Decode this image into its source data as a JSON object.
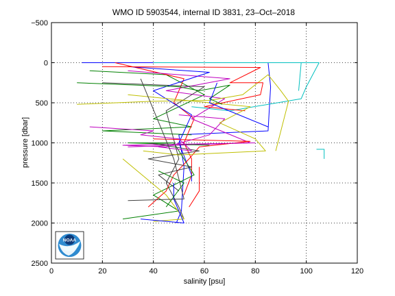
{
  "chart_data": {
    "type": "line",
    "title": "WMO ID 5903544, internal ID 3831, 23–Oct–2018",
    "xlabel": "salinity [psu]",
    "ylabel": "pressure [dbar]",
    "xlim": [
      0,
      120
    ],
    "ylim": [
      -500,
      2500
    ],
    "y_reversed": true,
    "x_ticks": [
      "0",
      "20",
      "40",
      "60",
      "80",
      "100",
      "120"
    ],
    "y_ticks": [
      "−500",
      "0",
      "500",
      "1000",
      "1500",
      "2000",
      "2500"
    ],
    "grid": "dotted",
    "legend": "none",
    "logo": "noaa-logo",
    "series": [
      {
        "color": "#0000ff",
        "points": [
          [
            12,
            0
          ],
          [
            85,
            0
          ],
          [
            86,
            300
          ],
          [
            85,
            850
          ],
          [
            50,
            900
          ],
          [
            52,
            1300
          ],
          [
            51,
            1850
          ],
          [
            49,
            2000
          ]
        ]
      },
      {
        "color": "#008000",
        "points": [
          [
            15,
            100
          ],
          [
            45,
            150
          ],
          [
            60,
            400
          ],
          [
            40,
            700
          ],
          [
            55,
            800
          ],
          [
            20,
            850
          ],
          [
            55,
            900
          ]
        ]
      },
      {
        "color": "#ff0000",
        "points": [
          [
            25,
            0
          ],
          [
            52,
            200
          ],
          [
            48,
            500
          ],
          [
            56,
            700
          ],
          [
            52,
            1000
          ],
          [
            55,
            1200
          ],
          [
            55,
            1400
          ],
          [
            52,
            1650
          ]
        ]
      },
      {
        "color": "#00bfbf",
        "points": [
          [
            40,
            0
          ],
          [
            105,
            0
          ],
          [
            100,
            300
          ],
          [
            98,
            450
          ],
          [
            70,
            600
          ],
          [
            55,
            550
          ]
        ]
      },
      {
        "color": "#bf00bf",
        "points": [
          [
            30,
            100
          ],
          [
            70,
            200
          ],
          [
            45,
            350
          ],
          [
            68,
            450
          ],
          [
            55,
            700
          ],
          [
            78,
            1000
          ],
          [
            30,
            1050
          ]
        ]
      },
      {
        "color": "#bfbf00",
        "points": [
          [
            10,
            520
          ],
          [
            40,
            480
          ],
          [
            62,
            470
          ],
          [
            75,
            400
          ],
          [
            85,
            150
          ],
          [
            90,
            350
          ],
          [
            93,
            480
          ],
          [
            88,
            1100
          ]
        ]
      },
      {
        "color": "#404040",
        "points": [
          [
            20,
            250
          ],
          [
            60,
            300
          ],
          [
            45,
            600
          ],
          [
            50,
            1200
          ],
          [
            45,
            1500
          ],
          [
            50,
            1800
          ],
          [
            52,
            1950
          ]
        ]
      },
      {
        "color": "#0000ff",
        "points": [
          [
            30,
            50
          ],
          [
            62,
            120
          ],
          [
            40,
            350
          ],
          [
            55,
            650
          ],
          [
            50,
            1000
          ],
          [
            55,
            1400
          ],
          [
            55,
            1480
          ]
        ]
      },
      {
        "color": "#008000",
        "points": [
          [
            28,
            1950
          ],
          [
            50,
            1850
          ],
          [
            40,
            1650
          ],
          [
            56,
            1400
          ],
          [
            48,
            1000
          ],
          [
            30,
            1000
          ],
          [
            62,
            1030
          ]
        ]
      },
      {
        "color": "#ff0000",
        "points": [
          [
            40,
            950
          ],
          [
            78,
            980
          ],
          [
            58,
            1050
          ],
          [
            54,
            1200
          ],
          [
            48,
            1400
          ],
          [
            45,
            1600
          ],
          [
            38,
            1800
          ]
        ]
      },
      {
        "color": "#bf00bf",
        "points": [
          [
            50,
            650
          ],
          [
            68,
            700
          ],
          [
            62,
            900
          ],
          [
            45,
            1050
          ],
          [
            28,
            1030
          ],
          [
            80,
            1000
          ]
        ]
      },
      {
        "color": "#00bfbf",
        "points": [
          [
            104,
            1080
          ],
          [
            107,
            1080
          ],
          [
            107,
            1200
          ]
        ]
      },
      {
        "color": "#bfbf00",
        "points": [
          [
            28,
            1200
          ],
          [
            45,
            1650
          ],
          [
            52,
            1950
          ],
          [
            40,
            1980
          ]
        ]
      },
      {
        "color": "#404040",
        "points": [
          [
            38,
            1000
          ],
          [
            58,
            1100
          ],
          [
            38,
            1200
          ],
          [
            55,
            1300
          ],
          [
            42,
            1400
          ],
          [
            50,
            1600
          ]
        ]
      },
      {
        "color": "#0000ff",
        "points": [
          [
            35,
            1950
          ],
          [
            52,
            2000
          ],
          [
            48,
            1700
          ],
          [
            48,
            1500
          ]
        ]
      },
      {
        "color": "#008000",
        "points": [
          [
            42,
            1350
          ],
          [
            52,
            1500
          ],
          [
            45,
            1800
          ]
        ]
      },
      {
        "color": "#ff0000",
        "points": [
          [
            20,
            50
          ],
          [
            82,
            60
          ],
          [
            70,
            250
          ],
          [
            83,
            250
          ],
          [
            82,
            400
          ],
          [
            60,
            550
          ],
          [
            76,
            600
          ]
        ]
      },
      {
        "color": "#bfbf00",
        "points": [
          [
            30,
            400
          ],
          [
            78,
            550
          ],
          [
            66,
            750
          ],
          [
            80,
            950
          ],
          [
            84,
            1100
          ],
          [
            50,
            1150
          ],
          [
            36,
            1100
          ]
        ]
      },
      {
        "color": "#bf00bf",
        "points": [
          [
            15,
            800
          ],
          [
            40,
            850
          ],
          [
            35,
            900
          ],
          [
            50,
            950
          ],
          [
            55,
            1100
          ],
          [
            42,
            1050
          ]
        ]
      },
      {
        "color": "#008000",
        "points": [
          [
            10,
            250
          ],
          [
            50,
            300
          ],
          [
            58,
            350
          ],
          [
            70,
            280
          ],
          [
            62,
            450
          ],
          [
            67,
            520
          ]
        ]
      },
      {
        "color": "#404040",
        "points": [
          [
            35,
            200
          ],
          [
            48,
            1200
          ],
          [
            52,
            1700
          ],
          [
            30,
            1720
          ]
        ]
      },
      {
        "color": "#ff0000",
        "points": [
          [
            58,
            1300
          ],
          [
            58,
            1600
          ],
          [
            54,
            1800
          ]
        ]
      },
      {
        "color": "#0000ff",
        "points": [
          [
            65,
            250
          ],
          [
            62,
            500
          ],
          [
            85,
            800
          ]
        ]
      },
      {
        "color": "#00bfbf",
        "points": [
          [
            55,
            0
          ],
          [
            98,
            0
          ],
          [
            97,
            350
          ]
        ]
      }
    ]
  }
}
